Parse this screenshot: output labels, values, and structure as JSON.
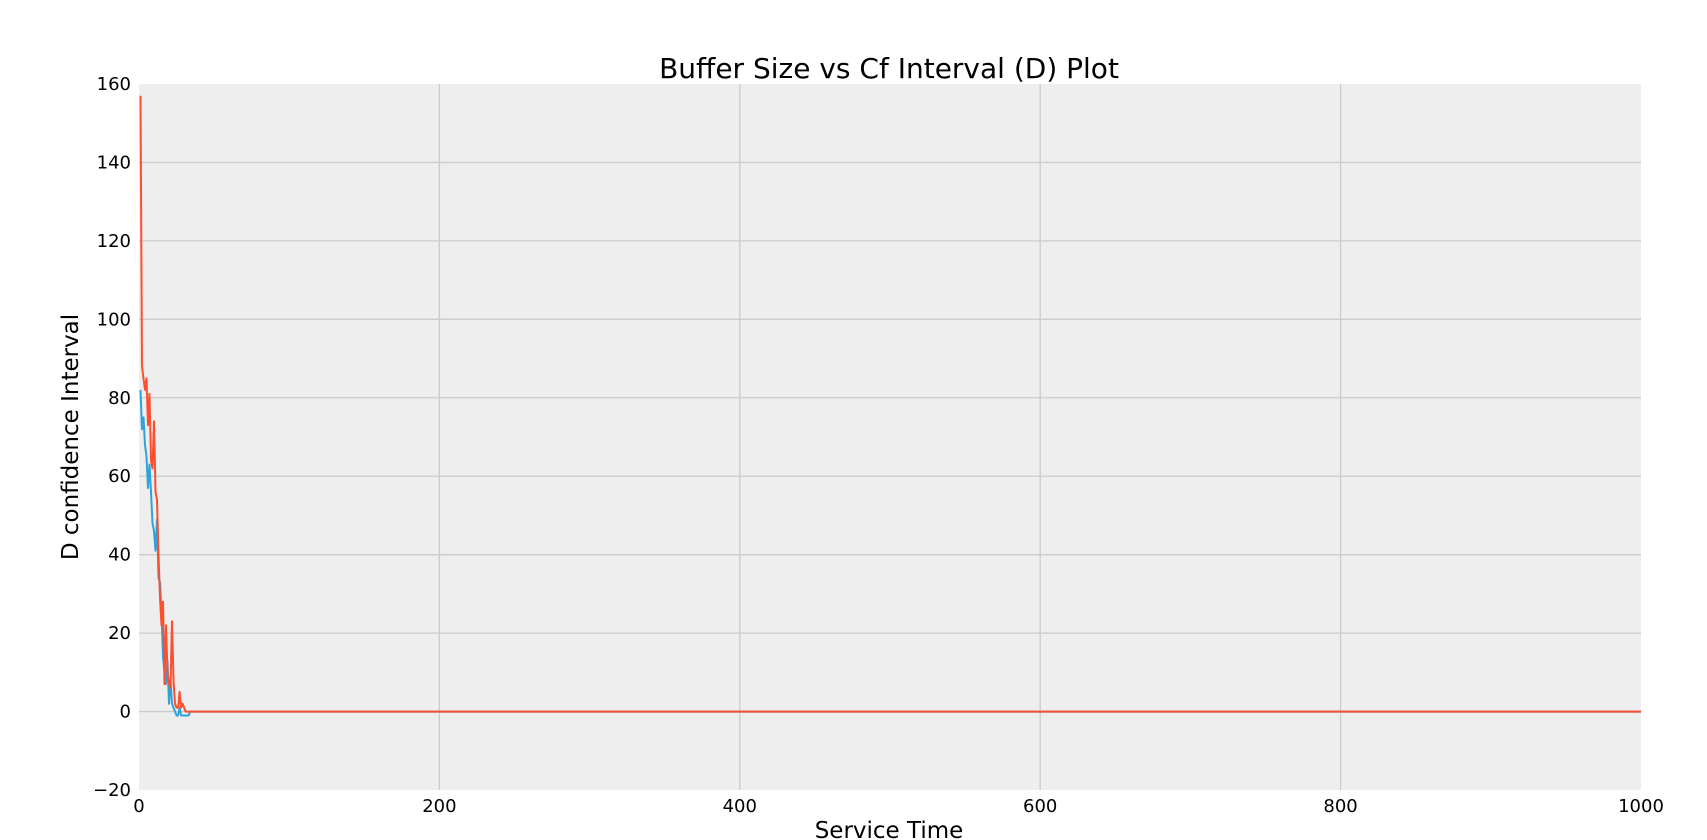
{
  "chart_data": {
    "type": "line",
    "title": "Buffer Size vs Cf Interval (D) Plot",
    "xlabel": "Service Time",
    "ylabel": "D confidence Interval",
    "xlim": [
      0,
      1000
    ],
    "ylim": [
      -20,
      160
    ],
    "xticks": [
      0,
      200,
      400,
      600,
      800,
      1000
    ],
    "yticks": [
      -20,
      0,
      20,
      40,
      60,
      80,
      100,
      120,
      140,
      160
    ],
    "xtick_labels": [
      "0",
      "200",
      "400",
      "600",
      "800",
      "1000"
    ],
    "ytick_labels": [
      "−20",
      "0",
      "20",
      "40",
      "60",
      "80",
      "100",
      "120",
      "140",
      "160"
    ],
    "grid": true,
    "background": "#eeeeee",
    "grid_color": "#cbcbcb",
    "series": [
      {
        "color": "#30a2da",
        "x": [
          1,
          2,
          3,
          4,
          5,
          6,
          7,
          8,
          9,
          10,
          11,
          12,
          13,
          14,
          15,
          16,
          17,
          18,
          19,
          20,
          21,
          22,
          23,
          24,
          25,
          26,
          27,
          28,
          29,
          30,
          31,
          32,
          33,
          34,
          35,
          36,
          1000
        ],
        "y": [
          82,
          72,
          75,
          68,
          65,
          57,
          63,
          56,
          48,
          46,
          41,
          49,
          34,
          33,
          25,
          14,
          10,
          7,
          13,
          2,
          8,
          2,
          1,
          0,
          -1,
          -1,
          1,
          -1,
          -1,
          -1,
          -1,
          -1,
          -1,
          0,
          0,
          0,
          0
        ]
      },
      {
        "color": "#fc4f30",
        "x": [
          1,
          2,
          3,
          4,
          5,
          6,
          7,
          8,
          9,
          10,
          11,
          12,
          13,
          14,
          15,
          16,
          17,
          18,
          19,
          20,
          21,
          22,
          23,
          24,
          25,
          26,
          27,
          28,
          29,
          30,
          31,
          32,
          33,
          34,
          35,
          36,
          1000
        ],
        "y": [
          157,
          88,
          85,
          82,
          85,
          73,
          81,
          64,
          62,
          74,
          56,
          54,
          40,
          29,
          22,
          28,
          7,
          22,
          10,
          7,
          6,
          23,
          8,
          2,
          1,
          1,
          5,
          1,
          2,
          1,
          0,
          0,
          0,
          0,
          0,
          0,
          0
        ]
      }
    ]
  }
}
